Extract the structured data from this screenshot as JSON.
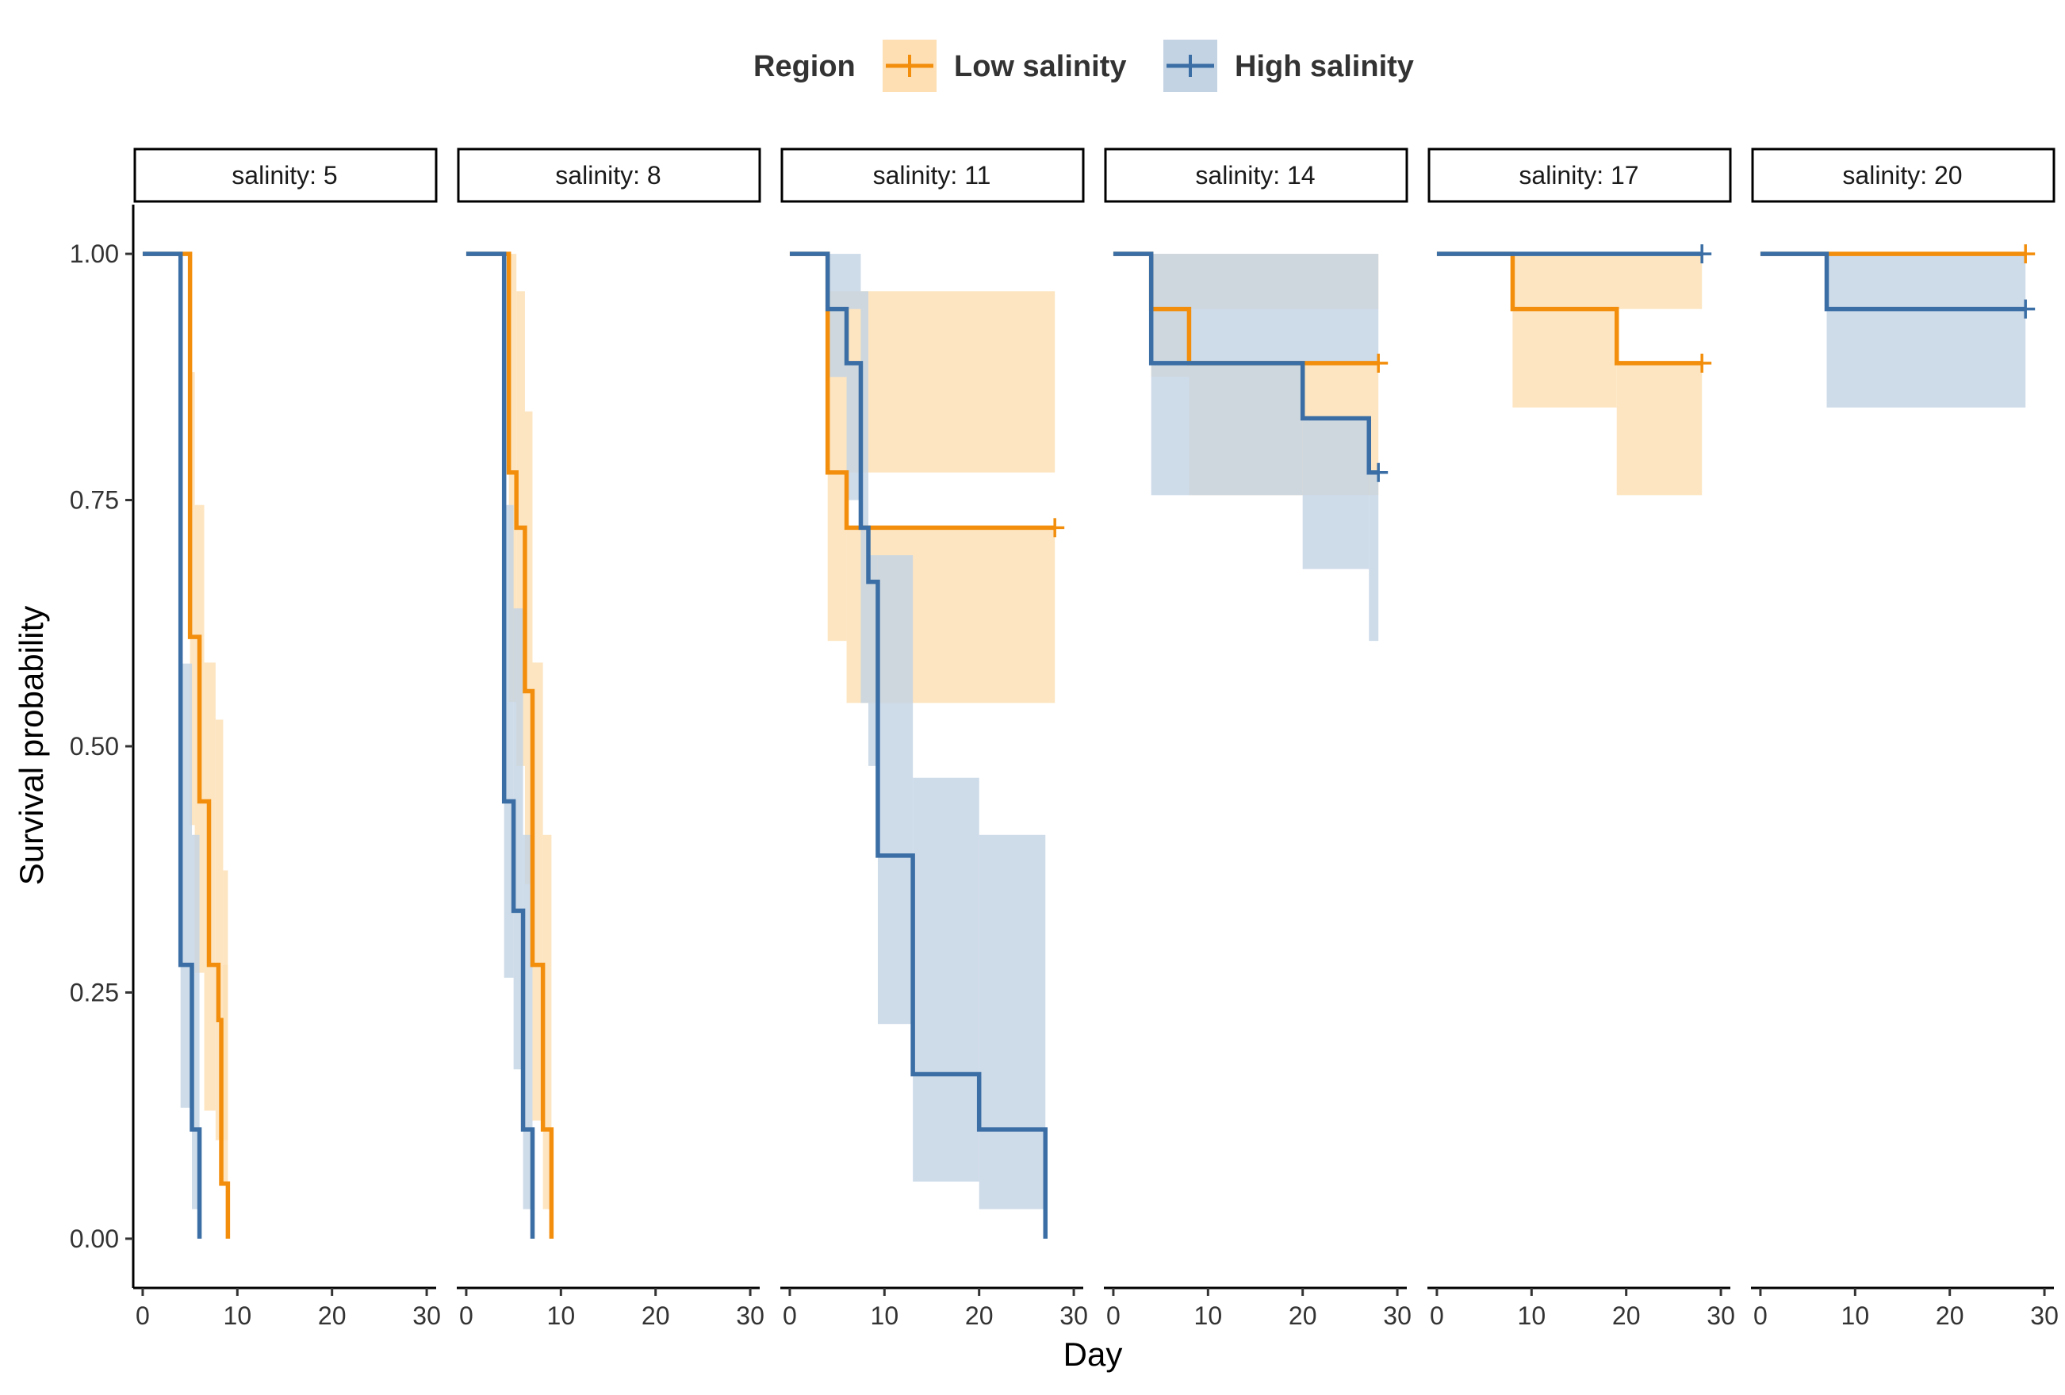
{
  "chart_data": {
    "type": "line",
    "subtype": "kaplan-meier survival curves with confidence bands, faceted",
    "xlabel": "Day",
    "ylabel": "Survival probability",
    "xlim": [
      -1,
      31
    ],
    "ylim": [
      -0.05,
      1.05
    ],
    "xticks": [
      0,
      10,
      20,
      30
    ],
    "xtick_labels": [
      "0",
      "10",
      "20",
      "30"
    ],
    "yticks": [
      0,
      0.25,
      0.5,
      0.75,
      1
    ],
    "ytick_labels": [
      "0.00",
      "0.25",
      "0.50",
      "0.75",
      "1.00"
    ],
    "grid": false,
    "legend": {
      "title": "Region",
      "position": "top",
      "entries": [
        "Low salinity",
        "High salinity"
      ]
    },
    "colors": {
      "Low salinity": "#F28E0C",
      "High salinity": "#3A6EA5"
    },
    "band_colors": {
      "Low salinity": "#FDDFB3",
      "High salinity": "#C3D3E4"
    },
    "facets": [
      {
        "strip": "salinity: 5",
        "series": [
          {
            "name": "Low salinity",
            "steps": [
              [
                0,
                1
              ],
              [
                5,
                0.611
              ],
              [
                6,
                0.444
              ],
              [
                7,
                0.278
              ],
              [
                8,
                0.222
              ],
              [
                8.3,
                0.056
              ],
              [
                9,
                0
              ]
            ],
            "upper": [
              [
                5,
                0.88
              ],
              [
                5.5,
                0.745
              ],
              [
                6.5,
                0.585
              ],
              [
                7.7,
                0.527
              ],
              [
                8.5,
                0.374
              ]
            ],
            "lower": [
              [
                5,
                0.42
              ],
              [
                5.5,
                0.27
              ],
              [
                6.5,
                0.13
              ],
              [
                7.7,
                0.1
              ]
            ],
            "censor": []
          },
          {
            "name": "High salinity",
            "steps": [
              [
                0,
                1
              ],
              [
                4,
                0.278
              ],
              [
                5.2,
                0.111
              ],
              [
                6,
                0
              ]
            ],
            "upper": [
              [
                4,
                0.584
              ],
              [
                5.2,
                0.41
              ]
            ],
            "lower": [
              [
                4,
                0.133
              ],
              [
                5.2,
                0.03
              ]
            ],
            "censor": []
          }
        ]
      },
      {
        "strip": "salinity: 8",
        "series": [
          {
            "name": "Low salinity",
            "steps": [
              [
                0,
                1
              ],
              [
                4.5,
                0.778
              ],
              [
                5.3,
                0.722
              ],
              [
                6.2,
                0.556
              ],
              [
                7,
                0.278
              ],
              [
                8.1,
                0.111
              ],
              [
                9,
                0
              ]
            ],
            "upper": [
              [
                4.5,
                1
              ],
              [
                5.3,
                0.962
              ],
              [
                6.2,
                0.84
              ],
              [
                7,
                0.585
              ],
              [
                8.1,
                0.41
              ]
            ],
            "lower": [
              [
                4.5,
                0.545
              ],
              [
                5.3,
                0.48
              ],
              [
                6.2,
                0.36
              ],
              [
                7,
                0.12
              ],
              [
                8.1,
                0.03
              ]
            ],
            "censor": []
          },
          {
            "name": "High salinity",
            "steps": [
              [
                0,
                1
              ],
              [
                4,
                0.444
              ],
              [
                5,
                0.333
              ],
              [
                6,
                0.111
              ],
              [
                7,
                0
              ]
            ],
            "upper": [
              [
                4,
                0.745
              ],
              [
                5,
                0.64
              ],
              [
                6,
                0.41
              ]
            ],
            "lower": [
              [
                4,
                0.265
              ],
              [
                5,
                0.172
              ],
              [
                6,
                0.03
              ]
            ],
            "censor": []
          }
        ]
      },
      {
        "strip": "salinity: 11",
        "series": [
          {
            "name": "Low salinity",
            "steps": [
              [
                0,
                1
              ],
              [
                4,
                0.778
              ],
              [
                6,
                0.722
              ],
              [
                28,
                0.722
              ]
            ],
            "upper": [
              [
                4,
                0.962
              ],
              [
                28,
                0.962
              ]
            ],
            "lower": [
              [
                4,
                0.607
              ],
              [
                6,
                0.544
              ],
              [
                28,
                0.544
              ]
            ],
            "censor": [
              [
                28,
                0.722
              ]
            ]
          },
          {
            "name": "High salinity",
            "steps": [
              [
                0,
                1
              ],
              [
                4,
                0.944
              ],
              [
                6,
                0.889
              ],
              [
                7.5,
                0.722
              ],
              [
                8.3,
                0.667
              ],
              [
                9.3,
                0.389
              ],
              [
                13,
                0.167
              ],
              [
                20,
                0.111
              ],
              [
                27,
                0
              ]
            ],
            "upper": [
              [
                4,
                1
              ],
              [
                7.5,
                0.962
              ],
              [
                8.3,
                0.694
              ],
              [
                9.3,
                0.694
              ],
              [
                13,
                0.468
              ],
              [
                20,
                0.41
              ]
            ],
            "lower": [
              [
                4,
                0.875
              ],
              [
                6,
                0.75
              ],
              [
                7.5,
                0.544
              ],
              [
                8.3,
                0.48
              ],
              [
                9.3,
                0.218
              ],
              [
                13,
                0.058
              ],
              [
                20,
                0.03
              ]
            ],
            "censor": []
          }
        ]
      },
      {
        "strip": "salinity: 14",
        "series": [
          {
            "name": "Low salinity",
            "steps": [
              [
                0,
                1
              ],
              [
                4,
                0.944
              ],
              [
                8,
                0.889
              ],
              [
                28,
                0.889
              ]
            ],
            "upper": [
              [
                4,
                1
              ],
              [
                28,
                1
              ]
            ],
            "lower": [
              [
                4,
                0.875
              ],
              [
                8,
                0.755
              ],
              [
                28,
                0.755
              ]
            ],
            "censor": [
              [
                28,
                0.889
              ]
            ]
          },
          {
            "name": "High salinity",
            "steps": [
              [
                0,
                1
              ],
              [
                4,
                0.889
              ],
              [
                20,
                0.833
              ],
              [
                27,
                0.778
              ],
              [
                28,
                0.778
              ]
            ],
            "upper": [
              [
                4,
                1
              ],
              [
                28,
                1
              ]
            ],
            "lower": [
              [
                4,
                0.755
              ],
              [
                20,
                0.68
              ],
              [
                27,
                0.607
              ],
              [
                28,
                0.607
              ]
            ],
            "censor": [
              [
                28,
                0.778
              ]
            ]
          }
        ]
      },
      {
        "strip": "salinity: 17",
        "series": [
          {
            "name": "Low salinity",
            "steps": [
              [
                0,
                1
              ],
              [
                8,
                0.944
              ],
              [
                19,
                0.889
              ],
              [
                28,
                0.889
              ]
            ],
            "upper": [
              [
                8,
                1
              ],
              [
                28,
                1
              ]
            ],
            "lower": [
              [
                8,
                0.844
              ],
              [
                19,
                0.755
              ],
              [
                28,
                0.755
              ]
            ],
            "censor": [
              [
                28,
                0.889
              ]
            ]
          },
          {
            "name": "High salinity",
            "steps": [
              [
                0,
                1
              ],
              [
                28,
                1
              ]
            ],
            "upper": [],
            "lower": [],
            "censor": [
              [
                28,
                1
              ]
            ]
          }
        ]
      },
      {
        "strip": "salinity: 20",
        "series": [
          {
            "name": "Low salinity",
            "steps": [
              [
                0,
                1
              ],
              [
                28,
                1
              ]
            ],
            "upper": [],
            "lower": [],
            "censor": [
              [
                28,
                1
              ]
            ]
          },
          {
            "name": "High salinity",
            "steps": [
              [
                0,
                1
              ],
              [
                7,
                0.944
              ],
              [
                28,
                0.944
              ]
            ],
            "upper": [
              [
                7,
                1
              ],
              [
                28,
                1
              ]
            ],
            "lower": [
              [
                7,
                0.844
              ],
              [
                28,
                0.844
              ]
            ],
            "censor": [
              [
                28,
                0.944
              ]
            ]
          }
        ]
      }
    ]
  }
}
